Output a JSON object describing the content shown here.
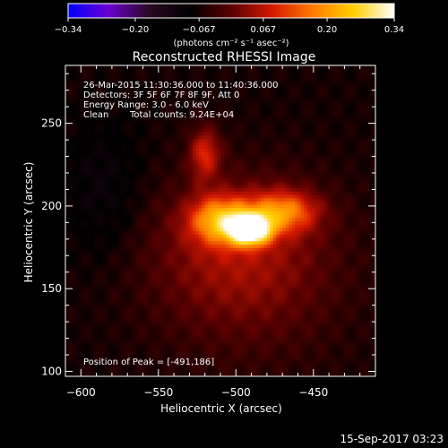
{
  "chart_data": {
    "type": "heatmap",
    "title": "Reconstructed RHESSI Image",
    "xlabel": "Heliocentric X (arcsec)",
    "ylabel": "Heliocentric Y (arcsec)",
    "xlim": [
      -610,
      -410
    ],
    "ylim": [
      97,
      285
    ],
    "x_ticks": [
      -600,
      -550,
      -500,
      -450
    ],
    "x_tick_labels": [
      "−600",
      "−550",
      "−500",
      "−450"
    ],
    "y_ticks": [
      100,
      150,
      200,
      250
    ],
    "y_tick_labels": [
      "100",
      "150",
      "200",
      "250"
    ],
    "colorbar": {
      "range": [
        -0.34,
        0.34
      ],
      "ticks": [
        -0.34,
        -0.2,
        -0.067,
        0.067,
        0.2,
        0.34
      ],
      "tick_labels": [
        "−0.34",
        "−0.20",
        "−0.067",
        "0.067",
        "0.20",
        "0.34"
      ],
      "unit_label": "(photons cm⁻² s⁻¹ asec⁻²)",
      "colors": [
        "#0000ff",
        "#6a00d0",
        "#2a0820",
        "#000000",
        "#5a0000",
        "#d41800",
        "#ff7a00",
        "#ffd000",
        "#ffffff"
      ]
    },
    "annotations": [
      "26-Mar-2015 11:30:36.000 to 11:40:36.000",
      "Detectors: 3F 5F 6F 7F 8F 9F, Att 0",
      "Energy Range: 3.0 - 6.0 keV",
      "Clean",
      "Total counts: 9.24E+04"
    ],
    "peak_label": "Position of Peak = [-491,186]",
    "peak": {
      "x": -491,
      "y": 186
    },
    "sources": [
      {
        "x": -491,
        "y": 186,
        "sx": 9,
        "sy": 6,
        "amp": 0.34
      },
      {
        "x": -510,
        "y": 192,
        "sx": 14,
        "sy": 10,
        "amp": 0.18
      },
      {
        "x": -470,
        "y": 197,
        "sx": 16,
        "sy": 9,
        "amp": 0.16
      },
      {
        "x": -520,
        "y": 232,
        "sx": 7,
        "sy": 11,
        "amp": 0.12
      },
      {
        "x": -500,
        "y": 175,
        "sx": 40,
        "sy": 30,
        "amp": 0.07
      },
      {
        "x": -490,
        "y": 150,
        "sx": 45,
        "sy": 40,
        "amp": 0.035
      },
      {
        "x": -585,
        "y": 210,
        "sx": 18,
        "sy": 30,
        "amp": -0.035
      }
    ],
    "background": 0.015,
    "date_stamp": "15-Sep-2017 03:23"
  }
}
